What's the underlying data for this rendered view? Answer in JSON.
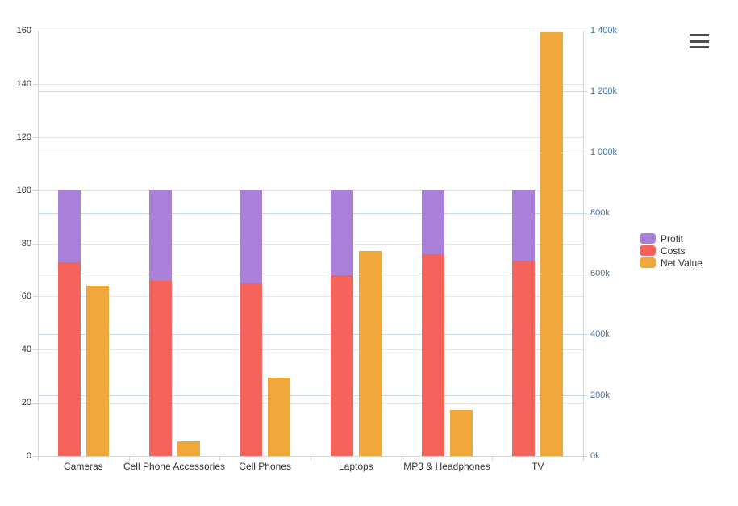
{
  "chart_data": {
    "type": "bar",
    "title": "",
    "xlabel": "",
    "ylabel_left": "",
    "ylabel_right": "",
    "categories": [
      "Cameras",
      "Cell Phone Accessories",
      "Cell Phones",
      "Laptops",
      "MP3 & Headphones",
      "TV"
    ],
    "series": [
      {
        "name": "Profit",
        "axis": "left",
        "stack": "total",
        "color": "#a981d8",
        "values": [
          27,
          34,
          35,
          32,
          24,
          26.5
        ]
      },
      {
        "name": "Costs",
        "axis": "left",
        "stack": "total",
        "color": "#f4635c",
        "values": [
          73,
          66,
          65,
          68,
          76,
          73.5
        ]
      },
      {
        "name": "Net Value",
        "axis": "right",
        "stack": null,
        "color": "#efa63a",
        "values": [
          560000,
          48000,
          258000,
          675000,
          152000,
          1395000
        ]
      }
    ],
    "left_axis": {
      "min": 0,
      "max": 160,
      "tick_interval": 20,
      "tick_labels": [
        "0",
        "20",
        "40",
        "60",
        "80",
        "100",
        "120",
        "140",
        "160"
      ]
    },
    "right_axis": {
      "min": 0,
      "max": 1400000,
      "tick_interval": 200000,
      "tick_labels": [
        "0k",
        "200k",
        "400k",
        "600k",
        "800k",
        "1 000k",
        "1 200k",
        "1 400k"
      ]
    },
    "grid": true,
    "legend_position": "right"
  },
  "legend": {
    "items": [
      {
        "label": "Profit",
        "color": "#a981d8"
      },
      {
        "label": "Costs",
        "color": "#f4635c"
      },
      {
        "label": "Net Value",
        "color": "#efa63a"
      }
    ]
  },
  "menu": {
    "icon": "hamburger-icon",
    "tooltip": "Chart context menu"
  },
  "colors": {
    "background": "#ffffff",
    "axis_line": "#ccd6eb",
    "grid_left": "#e6e6e6",
    "grid_right": "#c9d9e8",
    "left_label": "#333333",
    "right_label": "#4572a7",
    "menu_icon": "#4d4d4d"
  }
}
